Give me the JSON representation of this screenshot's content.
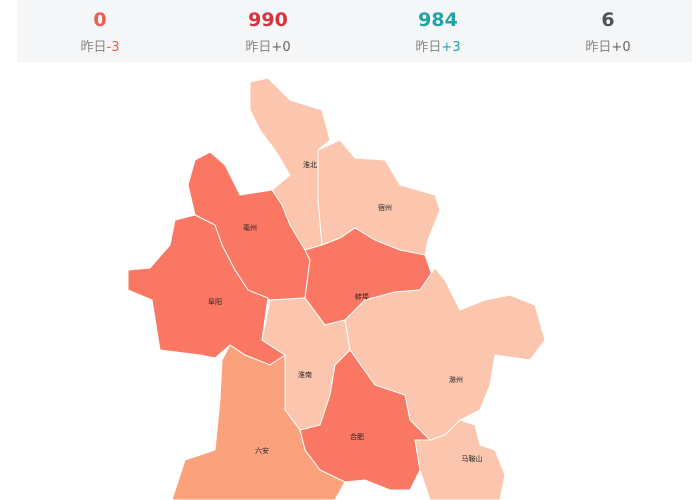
{
  "yesterday_label": "昨日",
  "stats": [
    {
      "value": 0,
      "color": "#ef5b4c",
      "delta": "-3",
      "delta_color": "#ef5b4c"
    },
    {
      "value": 990,
      "color": "#d7333f",
      "delta": "+0",
      "delta_color": "#666666"
    },
    {
      "value": 984,
      "color": "#23a3a6",
      "delta": "+3",
      "delta_color": "#23a3a6"
    },
    {
      "value": 6,
      "color": "#4d5358",
      "delta": "+0",
      "delta_color": "#666666"
    }
  ],
  "regions": [
    {
      "name": "淮北",
      "color": "#fbc6ad"
    },
    {
      "name": "宿州",
      "color": "#fbc6ad"
    },
    {
      "name": "亳州",
      "color": "#f97763"
    },
    {
      "name": "阜阳",
      "color": "#f97763"
    },
    {
      "name": "蚌埠",
      "color": "#f97763"
    },
    {
      "name": "淮南",
      "color": "#fbc6ad"
    },
    {
      "name": "滁州",
      "color": "#fbc6ad"
    },
    {
      "name": "合肥",
      "color": "#f97763"
    },
    {
      "name": "六安",
      "color": "#fba27c"
    },
    {
      "name": "马鞍山",
      "color": "#fbc6ad"
    }
  ]
}
